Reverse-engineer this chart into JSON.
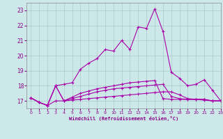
{
  "xlabel": "Windchill (Refroidissement éolien,°C)",
  "xlim": [
    -0.5,
    23
  ],
  "ylim": [
    16.5,
    23.5
  ],
  "yticks": [
    17,
    18,
    19,
    20,
    21,
    22,
    23
  ],
  "xticks": [
    0,
    1,
    2,
    3,
    4,
    5,
    6,
    7,
    8,
    9,
    10,
    11,
    12,
    13,
    14,
    15,
    16,
    17,
    18,
    19,
    20,
    21,
    22,
    23
  ],
  "background_color": "#cce8e8",
  "grid_color": "#aacccc",
  "line_color": "#aa00aa",
  "lines": [
    [
      17.2,
      16.9,
      16.7,
      18.0,
      18.1,
      18.2,
      19.1,
      19.5,
      19.8,
      20.4,
      20.3,
      21.0,
      20.4,
      21.9,
      21.8,
      23.1,
      21.6,
      18.9,
      18.5,
      18.0,
      18.1,
      18.4,
      17.7,
      17.0
    ],
    [
      17.2,
      16.9,
      16.7,
      18.0,
      17.0,
      17.15,
      17.3,
      17.45,
      17.6,
      17.7,
      17.8,
      17.85,
      17.9,
      17.95,
      18.0,
      18.05,
      18.1,
      17.3,
      17.15,
      17.1,
      17.1,
      17.1,
      17.0,
      17.0
    ],
    [
      17.2,
      16.9,
      16.7,
      18.0,
      17.0,
      17.25,
      17.5,
      17.65,
      17.8,
      17.9,
      18.0,
      18.1,
      18.2,
      18.25,
      18.3,
      18.35,
      17.15,
      17.1,
      17.1,
      17.1,
      17.1,
      17.1,
      17.0,
      17.0
    ],
    [
      17.2,
      16.9,
      16.7,
      17.0,
      17.0,
      17.05,
      17.1,
      17.15,
      17.2,
      17.25,
      17.3,
      17.35,
      17.4,
      17.45,
      17.5,
      17.55,
      17.6,
      17.6,
      17.4,
      17.15,
      17.1,
      17.05,
      17.0,
      17.0
    ]
  ]
}
